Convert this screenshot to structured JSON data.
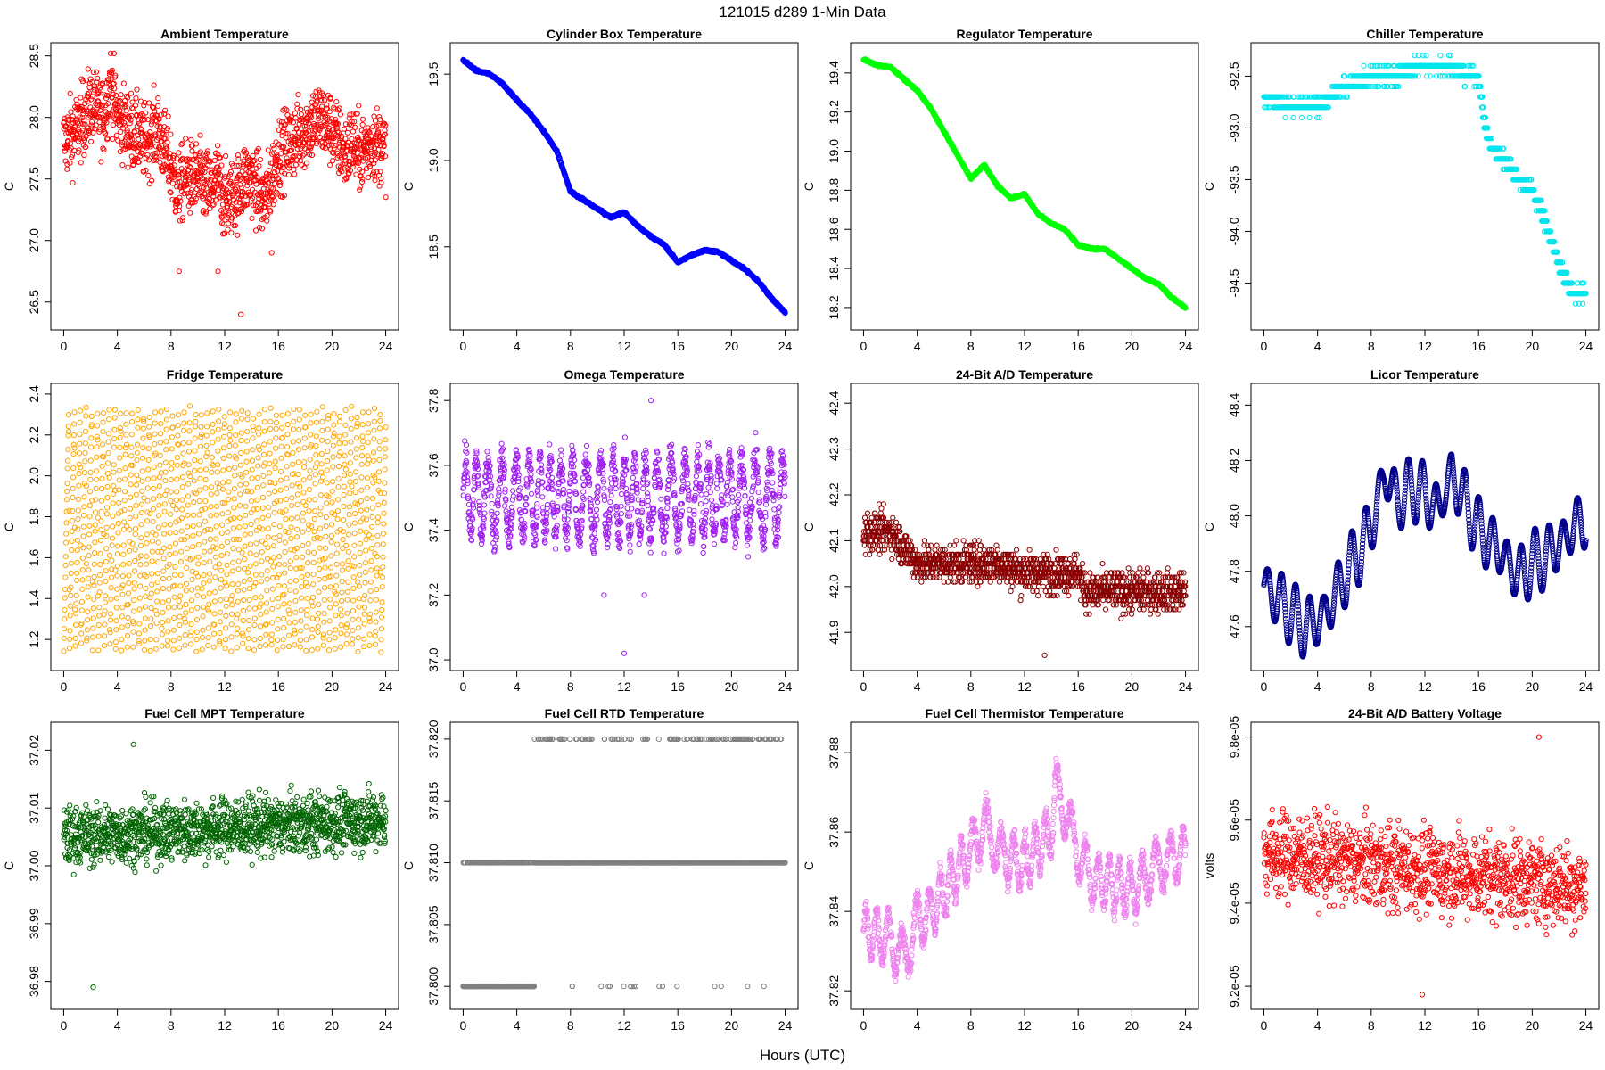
{
  "figure": {
    "title": "121015    d289    1-Min Data",
    "xlabel": "Hours (UTC)"
  },
  "chart_data": [
    {
      "type": "scatter",
      "title": "Ambient Temperature",
      "ylabel": "C",
      "color": "#ff0000",
      "xlim": [
        0,
        24
      ],
      "ylim": [
        26.36,
        28.52
      ],
      "xticks": [
        0,
        4,
        8,
        12,
        16,
        20,
        24
      ],
      "yticks": [
        26.5,
        27.0,
        27.5,
        28.0,
        28.5
      ],
      "ytick_labels": [
        "26.5",
        "27.0",
        "27.5",
        "28.0",
        "28.5"
      ],
      "x": [
        0,
        1,
        2,
        3,
        3.5,
        4,
        5,
        6,
        7,
        8,
        8.5,
        9,
        10,
        11,
        11.5,
        12,
        13,
        13.4,
        14,
        15,
        15.5,
        16,
        17,
        18,
        19,
        20,
        21,
        21.5,
        22,
        23,
        24
      ],
      "y": [
        27.8,
        27.9,
        28.1,
        28.0,
        28.3,
        28.0,
        27.9,
        27.8,
        27.9,
        27.6,
        27.4,
        27.5,
        27.5,
        27.4,
        27.5,
        27.3,
        27.4,
        27.5,
        27.5,
        27.3,
        27.5,
        27.7,
        27.8,
        27.9,
        28.0,
        27.9,
        27.7,
        27.8,
        27.7,
        27.8,
        27.75
      ],
      "noise": 0.3,
      "kind": "scatter",
      "points": 1440,
      "outliers": [
        [
          8.6,
          26.75
        ],
        [
          11.5,
          26.75
        ],
        [
          13.2,
          26.4
        ],
        [
          15.5,
          26.9
        ]
      ]
    },
    {
      "type": "scatter",
      "title": "Cylinder Box Temperature",
      "ylabel": "C",
      "color": "#0000ff",
      "xlim": [
        0,
        24
      ],
      "ylim": [
        18.08,
        19.62
      ],
      "xticks": [
        0,
        4,
        8,
        12,
        16,
        20,
        24
      ],
      "yticks": [
        18.5,
        19.0,
        19.5
      ],
      "ytick_labels": [
        "18.5",
        "19.0",
        "19.5"
      ],
      "x": [
        0,
        1,
        2,
        3,
        4,
        5,
        6,
        7,
        8,
        9,
        10,
        11,
        12,
        13,
        14,
        15,
        16,
        17,
        18,
        19,
        20,
        21,
        22,
        23,
        24
      ],
      "y": [
        19.58,
        19.52,
        19.5,
        19.44,
        19.35,
        19.27,
        19.17,
        19.05,
        18.82,
        18.77,
        18.72,
        18.67,
        18.7,
        18.62,
        18.56,
        18.51,
        18.41,
        18.45,
        18.48,
        18.47,
        18.42,
        18.37,
        18.3,
        18.2,
        18.12
      ],
      "noise": 0.015,
      "kind": "line",
      "points": 1440,
      "outliers": []
    },
    {
      "type": "scatter",
      "title": "Regulator Temperature",
      "ylabel": "C",
      "color": "#00ff00",
      "xlim": [
        0,
        24
      ],
      "ylim": [
        18.14,
        19.5
      ],
      "xticks": [
        0,
        4,
        8,
        12,
        16,
        20,
        24
      ],
      "yticks": [
        18.2,
        18.4,
        18.6,
        18.8,
        19.0,
        19.2,
        19.4
      ],
      "ytick_labels": [
        "18.2",
        "18.4",
        "18.6",
        "18.8",
        "19.0",
        "19.2",
        "19.4"
      ],
      "x": [
        0,
        1,
        2,
        3,
        4,
        5,
        6,
        7,
        8,
        9,
        10,
        11,
        12,
        13,
        14,
        15,
        16,
        17,
        18,
        19,
        20,
        21,
        22,
        23,
        24
      ],
      "y": [
        19.47,
        19.44,
        19.43,
        19.37,
        19.31,
        19.22,
        19.1,
        18.98,
        18.86,
        18.93,
        18.82,
        18.76,
        18.78,
        18.68,
        18.63,
        18.6,
        18.52,
        18.5,
        18.5,
        18.45,
        18.4,
        18.35,
        18.32,
        18.25,
        18.2
      ],
      "noise": 0.012,
      "kind": "line",
      "points": 1440,
      "outliers": []
    },
    {
      "type": "scatter",
      "title": "Chiller Temperature",
      "ylabel": "C",
      "color": "#00e5ee",
      "xlim": [
        0,
        24
      ],
      "ylim": [
        -94.85,
        -92.28
      ],
      "xticks": [
        0,
        4,
        8,
        12,
        16,
        20,
        24
      ],
      "yticks": [
        -94.5,
        -94.0,
        -93.5,
        -93.0,
        -92.5
      ],
      "ytick_labels": [
        "-94.5",
        "-94.0",
        "-93.5",
        "-93.0",
        "-92.5"
      ],
      "x": [
        0,
        2,
        4,
        5,
        6,
        8,
        10,
        11.5,
        12,
        14,
        15,
        16,
        16.5,
        17,
        18,
        19,
        20,
        21,
        22,
        23,
        24
      ],
      "y": [
        -92.7,
        -92.8,
        -92.8,
        -92.7,
        -92.6,
        -92.5,
        -92.5,
        -92.4,
        -92.4,
        -92.4,
        -92.5,
        -92.5,
        -93.0,
        -93.2,
        -93.3,
        -93.5,
        -93.6,
        -93.9,
        -94.3,
        -94.6,
        -94.6
      ],
      "noise": 0.1,
      "kind": "quantized",
      "step": 0.1,
      "points": 1440,
      "outliers": []
    },
    {
      "type": "scatter",
      "title": "Fridge Temperature",
      "ylabel": "C",
      "color": "#ffa500",
      "xlim": [
        0,
        24
      ],
      "ylim": [
        1.1,
        2.4
      ],
      "xticks": [
        0,
        4,
        8,
        12,
        16,
        20,
        24
      ],
      "yticks": [
        1.2,
        1.4,
        1.6,
        1.8,
        2.0,
        2.2,
        2.4
      ],
      "ytick_labels": [
        "1.2",
        "1.4",
        "1.6",
        "1.8",
        "2.0",
        "2.2",
        "2.4"
      ],
      "x": [
        0,
        24
      ],
      "y": [
        1.75,
        1.75
      ],
      "kind": "cycle",
      "low": 1.14,
      "high": 2.33,
      "points": 1440,
      "outliers": []
    },
    {
      "type": "scatter",
      "title": "Omega Temperature",
      "ylabel": "C",
      "color": "#a020f0",
      "xlim": [
        0,
        24
      ],
      "ylim": [
        37.0,
        37.82
      ],
      "xticks": [
        0,
        4,
        8,
        12,
        16,
        20,
        24
      ],
      "yticks": [
        37.0,
        37.2,
        37.4,
        37.6,
        37.8
      ],
      "ytick_labels": [
        "37.0",
        "37.2",
        "37.4",
        "37.6",
        "37.8"
      ],
      "x": [
        0,
        24
      ],
      "y": [
        37.5,
        37.5
      ],
      "noise": 0.09,
      "kind": "oscillate",
      "amp": 0.12,
      "points": 1440,
      "outliers": [
        [
          12,
          37.02
        ],
        [
          14,
          37.8
        ],
        [
          10.5,
          37.2
        ],
        [
          13.5,
          37.2
        ]
      ]
    },
    {
      "type": "scatter",
      "title": "24-Bit A/D Temperature",
      "ylabel": "C",
      "color": "#8b0000",
      "xlim": [
        0,
        24
      ],
      "ylim": [
        41.84,
        42.42
      ],
      "xticks": [
        0,
        4,
        8,
        12,
        16,
        20,
        24
      ],
      "yticks": [
        41.9,
        42.0,
        42.1,
        42.2,
        42.3,
        42.4
      ],
      "ytick_labels": [
        "41.9",
        "42.0",
        "42.1",
        "42.2",
        "42.3",
        "42.4"
      ],
      "x": [
        0,
        2,
        4,
        6,
        8,
        10,
        12,
        14,
        16,
        16.5,
        18,
        20,
        22,
        24
      ],
      "y": [
        42.12,
        42.12,
        42.05,
        42.05,
        42.05,
        42.05,
        42.03,
        42.03,
        42.03,
        41.99,
        41.99,
        41.99,
        41.99,
        41.99
      ],
      "noise": 0.06,
      "kind": "quantized",
      "step": 0.01,
      "points": 1440,
      "outliers": [
        [
          13.5,
          41.85
        ]
      ]
    },
    {
      "type": "scatter",
      "title": "Licor Temperature",
      "ylabel": "C",
      "color": "#00008b",
      "xlim": [
        0,
        24
      ],
      "ylim": [
        47.48,
        48.44
      ],
      "xticks": [
        0,
        4,
        8,
        12,
        16,
        20,
        24
      ],
      "yticks": [
        47.6,
        47.8,
        48.0,
        48.2,
        48.4
      ],
      "ytick_labels": [
        "47.6",
        "47.8",
        "48.0",
        "48.2",
        "48.4"
      ],
      "x": [
        0,
        1,
        2,
        3,
        4,
        5,
        6,
        7,
        8,
        9,
        10,
        11,
        12,
        13,
        14,
        15,
        16,
        17,
        18,
        19,
        20,
        21,
        22,
        23,
        24
      ],
      "y": [
        47.75,
        47.7,
        47.65,
        47.6,
        47.62,
        47.68,
        47.78,
        47.86,
        47.96,
        48.15,
        48.05,
        48.1,
        48.08,
        48.02,
        48.15,
        48.05,
        47.95,
        47.9,
        47.85,
        47.78,
        47.83,
        47.85,
        47.9,
        47.95,
        48.0
      ],
      "noise": 0.01,
      "kind": "wave",
      "amp": 0.12,
      "points": 1440,
      "outliers": []
    },
    {
      "type": "scatter",
      "title": "Fuel Cell MPT Temperature",
      "ylabel": "C",
      "color": "#006400",
      "xlim": [
        0,
        24
      ],
      "ylim": [
        36.977,
        37.023
      ],
      "xticks": [
        0,
        4,
        8,
        12,
        16,
        20,
        24
      ],
      "yticks": [
        36.98,
        36.99,
        37.0,
        37.01,
        37.02
      ],
      "ytick_labels": [
        "36.98",
        "36.99",
        "37.00",
        "37.01",
        "37.02"
      ],
      "x": [
        0,
        24
      ],
      "y": [
        37.005,
        37.008
      ],
      "noise": 0.005,
      "kind": "scatter",
      "points": 1440,
      "outliers": [
        [
          2.2,
          36.979
        ],
        [
          5.2,
          37.021
        ]
      ]
    },
    {
      "type": "scatter",
      "title": "Fuel Cell RTD Temperature",
      "ylabel": "C",
      "color": "#808080",
      "xlim": [
        0,
        24
      ],
      "ylim": [
        37.799,
        37.8205
      ],
      "xticks": [
        0,
        4,
        8,
        12,
        16,
        20,
        24
      ],
      "yticks": [
        37.8,
        37.805,
        37.81,
        37.815,
        37.82
      ],
      "ytick_labels": [
        "37.800",
        "37.805",
        "37.810",
        "37.815",
        "37.820"
      ],
      "x": [
        0,
        24
      ],
      "y": [
        37.81,
        37.81
      ],
      "kind": "levels",
      "levels": [
        37.8,
        37.81,
        37.82
      ],
      "points": 1440,
      "outliers": []
    },
    {
      "type": "scatter",
      "title": "Fuel Cell Thermistor Temperature",
      "ylabel": "C",
      "color": "#ee82ee",
      "xlim": [
        0,
        24
      ],
      "ylim": [
        37.818,
        37.885
      ],
      "xticks": [
        0,
        4,
        8,
        12,
        16,
        20,
        24
      ],
      "yticks": [
        37.82,
        37.84,
        37.86,
        37.88
      ],
      "ytick_labels": [
        "37.82",
        "37.84",
        "37.86",
        "37.88"
      ],
      "x": [
        0,
        2,
        3,
        4,
        5,
        6,
        8,
        9,
        10,
        12,
        14,
        14.3,
        16,
        17,
        18,
        20,
        22,
        24
      ],
      "y": [
        37.835,
        37.833,
        37.828,
        37.838,
        37.84,
        37.845,
        37.855,
        37.862,
        37.855,
        37.852,
        37.86,
        37.872,
        37.855,
        37.848,
        37.848,
        37.845,
        37.852,
        37.855
      ],
      "noise": 0.004,
      "kind": "oscillate",
      "amp": 0.006,
      "points": 1440,
      "outliers": []
    },
    {
      "type": "scatter",
      "title": "24-Bit A/D Battery Voltage",
      "ylabel": "volts",
      "color": "#ff0000",
      "xlim": [
        0,
        24
      ],
      "ylim": [
        9.17e-05,
        9.81e-05
      ],
      "xticks": [
        0,
        4,
        8,
        12,
        16,
        20,
        24
      ],
      "yticks": [
        9.2e-05,
        9.4e-05,
        9.6e-05,
        9.8e-05
      ],
      "ytick_labels": [
        "9.2e-05",
        "9.4e-05",
        "9.6e-05",
        "9.8e-05"
      ],
      "x": [
        0,
        24
      ],
      "y": [
        9.52e-05,
        9.44e-05
      ],
      "noise": 1e-06,
      "kind": "scatter",
      "points": 1200,
      "outliers": [
        [
          11.8,
          9.18e-05
        ],
        [
          20.5,
          9.8e-05
        ]
      ]
    }
  ]
}
